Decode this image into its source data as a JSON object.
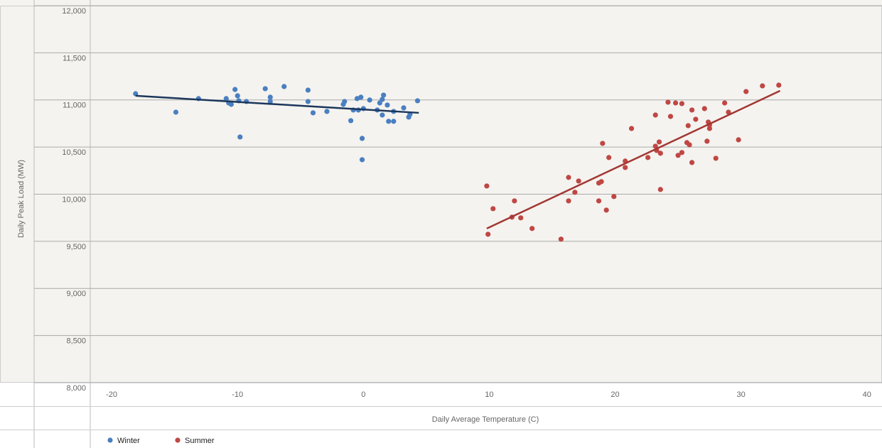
{
  "chart_data": {
    "type": "scatter",
    "x_label": "Daily Average Temperature (C)",
    "y_label": "Daily Peak Load (MW)",
    "xlim": [
      -21.7,
      41.2
    ],
    "ylim": [
      8000,
      12000
    ],
    "xticks": [
      -20,
      -10,
      0,
      10,
      20,
      30,
      40
    ],
    "yticks": [
      {
        "value": 8000,
        "label": "8,000"
      },
      {
        "value": 8500,
        "label": "8,500"
      },
      {
        "value": 9000,
        "label": "9,000"
      },
      {
        "value": 9500,
        "label": "9,500"
      },
      {
        "value": 10000,
        "label": "10,000"
      },
      {
        "value": 10500,
        "label": "10,500"
      },
      {
        "value": 11000,
        "label": "11,000"
      },
      {
        "value": 11500,
        "label": "11,500"
      },
      {
        "value": 12000,
        "label": "12,000"
      }
    ],
    "grid": true,
    "legend": "bottom",
    "series": [
      {
        "name": "Winter",
        "color": "#4a7fc1",
        "x": [
          -18.1,
          -14.9,
          -13.1,
          -10.9,
          -10.7,
          -10.5,
          -10.2,
          -10.0,
          -9.9,
          -9.8,
          -9.3,
          -7.8,
          -7.4,
          -7.4,
          -6.3,
          -4.4,
          -4.4,
          -4.0,
          -2.9,
          -1.6,
          -1.5,
          -1.0,
          -0.8,
          -0.5,
          -0.4,
          -0.2,
          -0.1,
          -0.1,
          0.0,
          0.5,
          1.1,
          1.3,
          1.5,
          1.5,
          1.6,
          1.9,
          2.0,
          2.4,
          2.4,
          3.2,
          3.6,
          3.7,
          4.3
        ],
        "values": [
          11066,
          10870,
          11014,
          11014,
          10968,
          10953,
          11111,
          11044,
          10991,
          10607,
          10983,
          11119,
          11029,
          10983,
          11142,
          11104,
          10983,
          10863,
          10878,
          10953,
          10983,
          10780,
          10893,
          11014,
          10893,
          11029,
          10592,
          10366,
          10908,
          10999,
          10893,
          10968,
          11006,
          10840,
          11051,
          10946,
          10773,
          10773,
          10878,
          10916,
          10818,
          10848,
          10991
        ],
        "trend": {
          "color": "#1c365c",
          "x": [
            -18.1,
            4.4
          ],
          "values": [
            11044,
            10863
          ]
        }
      },
      {
        "name": "Summer",
        "color": "#bf4744",
        "x": [
          9.8,
          9.9,
          10.3,
          11.8,
          12.0,
          12.5,
          13.4,
          15.7,
          16.3,
          16.3,
          16.8,
          17.1,
          18.7,
          18.7,
          18.9,
          19.0,
          19.3,
          19.5,
          19.9,
          20.8,
          20.8,
          21.3,
          22.6,
          23.2,
          23.2,
          23.3,
          23.5,
          23.6,
          23.6,
          24.2,
          24.4,
          24.8,
          25.0,
          25.3,
          25.3,
          25.7,
          25.8,
          25.9,
          26.1,
          26.1,
          26.4,
          27.1,
          27.3,
          27.4,
          27.5,
          27.5,
          28.0,
          28.7,
          29.0,
          29.8,
          30.4,
          31.7,
          33.0
        ],
        "values": [
          10087,
          9575,
          9846,
          9756,
          9929,
          9749,
          9636,
          9523,
          10178,
          9929,
          10020,
          10140,
          9929,
          10118,
          10133,
          10539,
          9831,
          10389,
          9975,
          10283,
          10351,
          10697,
          10389,
          10840,
          10509,
          10464,
          10554,
          10050,
          10434,
          10976,
          10825,
          10968,
          10412,
          10442,
          10961,
          10547,
          10727,
          10524,
          10336,
          10893,
          10795,
          10908,
          10562,
          10765,
          10735,
          10697,
          10381,
          10968,
          10870,
          10577,
          11089,
          11149,
          11157
        ],
        "trend": {
          "color": "#a23733",
          "x": [
            9.8,
            33.1
          ],
          "values": [
            9636,
            11097
          ]
        }
      }
    ]
  }
}
